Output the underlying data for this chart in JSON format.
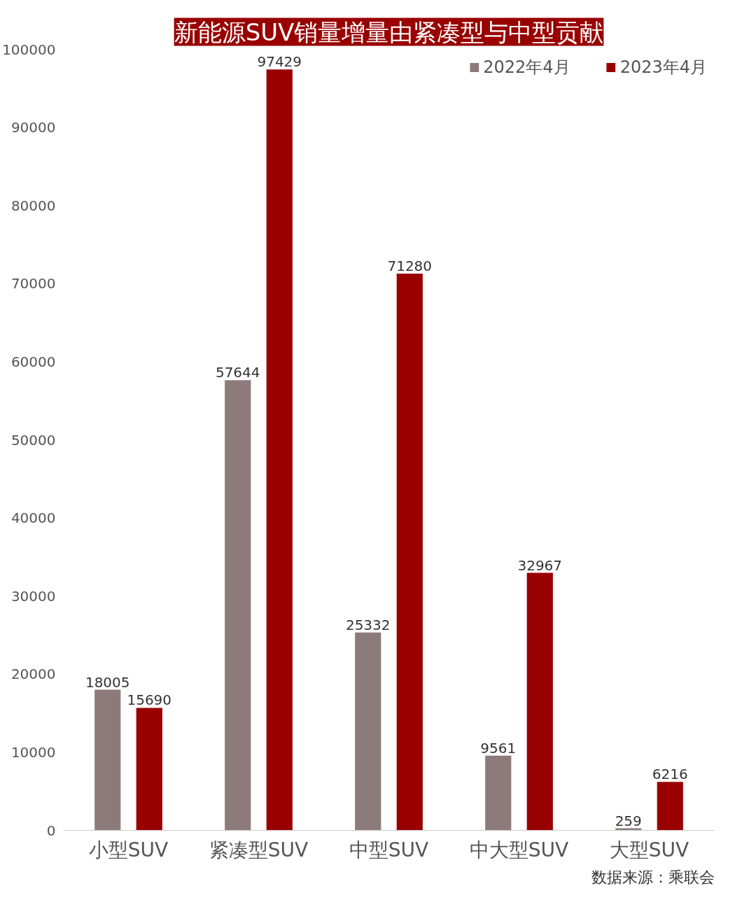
{
  "chart_data": {
    "type": "bar",
    "title": "新能源SUV销量增量由紧凑型与中型贡献",
    "categories": [
      "小型SUV",
      "紧凑型SUV",
      "中型SUV",
      "中大型SUV",
      "大型SUV"
    ],
    "series": [
      {
        "name": "2022年4月",
        "color": "#8c7b7a",
        "values": [
          18005,
          57644,
          25332,
          9561,
          259
        ]
      },
      {
        "name": "2023年4月",
        "color": "#990000",
        "values": [
          15690,
          97429,
          71280,
          32967,
          6216
        ]
      }
    ],
    "ylim": [
      0,
      100000
    ],
    "yticks": [
      0,
      10000,
      20000,
      30000,
      40000,
      50000,
      60000,
      70000,
      80000,
      90000,
      100000
    ],
    "data_labels": true,
    "grid": false,
    "legend": "top right",
    "annotations": [
      "数据来源：乘联会"
    ]
  }
}
